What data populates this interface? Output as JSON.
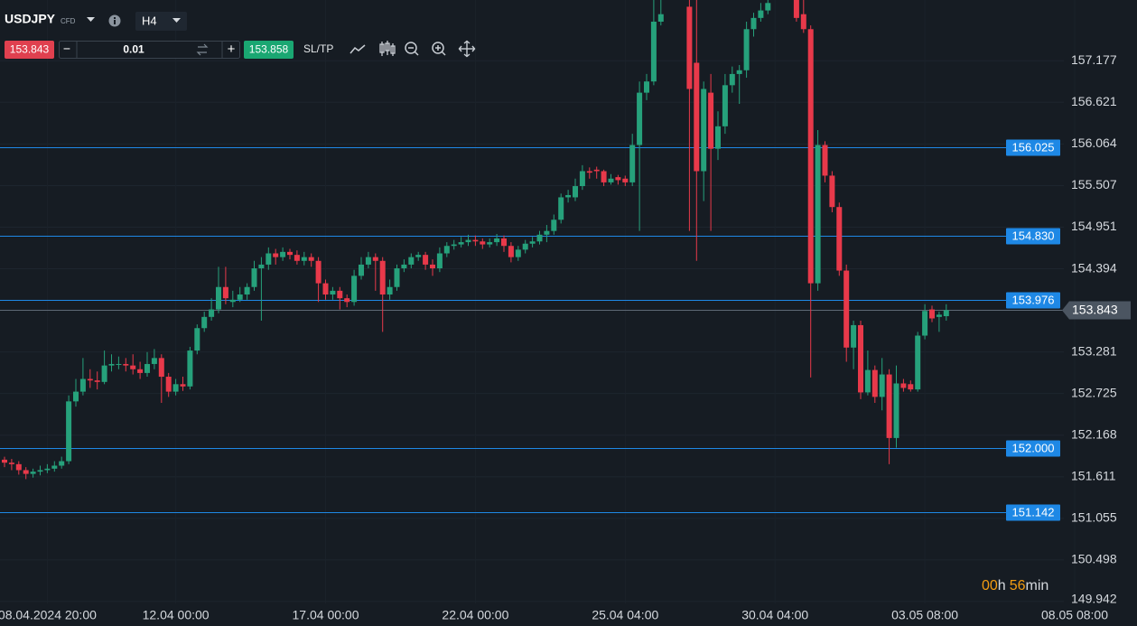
{
  "toolbar": {
    "symbol": "USDJPY",
    "symbol_type": "CFD",
    "timeframe": "H4",
    "sell_price": 153.843,
    "volume": 0.01,
    "buy_price": 153.858,
    "sltp": "SL/TP"
  },
  "timer": {
    "hours": "00",
    "hours_unit": "h",
    "minutes": "56",
    "minutes_unit": "min"
  },
  "chart_data": {
    "type": "candlestick",
    "categories": [
      null,
      null,
      null,
      null,
      null,
      null,
      "08.04.2024 20:00",
      null,
      null,
      null,
      null,
      null,
      null,
      null,
      null,
      null,
      null,
      null,
      null,
      null,
      null,
      null,
      null,
      null,
      "12.04 00:00",
      null,
      null,
      null,
      null,
      null,
      null,
      null,
      null,
      null,
      null,
      null,
      null,
      null,
      null,
      null,
      null,
      null,
      null,
      null,
      null,
      "17.04 00:00",
      null,
      null,
      null,
      null,
      null,
      null,
      null,
      null,
      null,
      null,
      null,
      null,
      null,
      null,
      null,
      null,
      null,
      null,
      null,
      null,
      "22.04 00:00",
      null,
      null,
      null,
      null,
      null,
      null,
      null,
      null,
      null,
      null,
      null,
      null,
      null,
      null,
      null,
      null,
      null,
      null,
      null,
      null,
      "25.04 04:00",
      null,
      null,
      null,
      null,
      null,
      null,
      null,
      null,
      null,
      null,
      null,
      null,
      null,
      null,
      null,
      null,
      null,
      null,
      null,
      null,
      "30.04 04:00",
      null,
      null,
      null,
      null,
      null,
      null,
      null,
      null,
      null,
      null,
      null,
      null,
      null,
      null,
      null,
      null,
      null,
      null,
      null,
      null,
      "03.05 08:00",
      null,
      null,
      null,
      null,
      null,
      null,
      null,
      null,
      null,
      null,
      null,
      null,
      null,
      null,
      null,
      null,
      null,
      null,
      null,
      null,
      "08.05 08:00"
    ],
    "open": [
      151.84,
      151.8,
      151.78,
      151.7,
      151.65,
      151.68,
      151.7,
      151.72,
      151.76,
      151.82,
      152.62,
      152.75,
      152.92,
      152.9,
      152.88,
      153.1,
      153.12,
      153.12,
      153.1,
      153.05,
      153.0,
      153.12,
      153.2,
      152.95,
      152.75,
      152.85,
      152.82,
      153.3,
      153.6,
      153.75,
      153.85,
      154.15,
      153.95,
      153.98,
      154.05,
      154.15,
      154.4,
      154.45,
      154.6,
      154.55,
      154.62,
      154.58,
      154.5,
      154.55,
      154.5,
      154.2,
      154.05,
      154.1,
      154.0,
      153.95,
      154.3,
      154.45,
      154.55,
      154.5,
      154.05,
      154.15,
      154.4,
      154.45,
      154.55,
      154.58,
      154.45,
      154.4,
      154.6,
      154.7,
      154.72,
      154.75,
      154.78,
      154.76,
      154.72,
      154.75,
      154.8,
      154.7,
      154.55,
      154.65,
      154.73,
      154.76,
      154.85,
      154.9,
      155.05,
      155.35,
      155.35,
      155.5,
      155.7,
      155.72,
      155.7,
      155.55,
      155.62,
      155.6,
      155.55,
      156.05,
      156.75,
      156.9,
      157.7,
      null,
      null,
      null,
      157.9,
      157.15,
      155.7,
      156.75,
      156.0,
      156.3,
      156.85,
      157.0,
      157.05,
      157.6,
      157.75,
      157.85,
      null,
      null,
      null,
      158.0,
      157.8,
      157.6,
      154.2,
      156.05,
      155.64,
      155.22,
      154.37,
      153.34,
      153.64,
      152.74,
      153.04,
      152.68,
      152.98,
      152.13,
      152.86,
      152.85,
      152.78,
      153.5,
      153.85,
      153.75,
      153.76,
      null,
      null,
      null,
      null,
      null,
      null,
      null,
      null,
      null,
      null,
      null,
      null,
      null,
      null,
      null,
      null,
      null,
      null
    ],
    "high": [
      151.88,
      151.85,
      151.82,
      151.74,
      151.72,
      151.76,
      151.78,
      151.82,
      151.88,
      152.7,
      152.92,
      153.2,
      153.05,
      153.02,
      153.3,
      153.25,
      153.22,
      153.2,
      153.25,
      153.15,
      153.28,
      153.32,
      153.25,
      153.0,
      152.92,
      152.95,
      153.35,
      153.65,
      153.82,
      154.0,
      154.42,
      154.42,
      154.1,
      154.15,
      154.2,
      154.5,
      154.55,
      154.68,
      154.66,
      154.68,
      154.66,
      154.64,
      154.62,
      154.6,
      154.55,
      154.25,
      154.15,
      154.15,
      154.05,
      154.38,
      154.55,
      154.62,
      154.6,
      154.55,
      154.25,
      154.45,
      154.52,
      154.6,
      154.62,
      154.62,
      154.52,
      154.68,
      154.75,
      154.78,
      154.82,
      154.85,
      154.84,
      154.8,
      154.8,
      154.86,
      154.84,
      154.75,
      154.7,
      154.78,
      154.82,
      154.9,
      154.98,
      155.12,
      155.4,
      155.45,
      155.6,
      155.78,
      155.75,
      155.76,
      155.72,
      155.66,
      155.65,
      155.64,
      156.2,
      156.9,
      157.0,
      158.05,
      158.05,
      null,
      null,
      null,
      158.1,
      158.1,
      156.9,
      157.0,
      156.5,
      157.0,
      157.1,
      157.12,
      157.7,
      157.82,
      157.95,
      158.05,
      null,
      null,
      null,
      158.1,
      158.1,
      157.65,
      156.25,
      156.1,
      155.7,
      155.28,
      154.45,
      153.7,
      153.7,
      153.3,
      153.1,
      153.2,
      153.05,
      153.1,
      152.92,
      152.9,
      153.55,
      153.92,
      153.9,
      153.82,
      153.92,
      null,
      null,
      null,
      null,
      null,
      null,
      null,
      null,
      null,
      null,
      null,
      null,
      null,
      null,
      null,
      null,
      null,
      null
    ],
    "low": [
      151.74,
      151.7,
      151.64,
      151.58,
      151.6,
      151.63,
      151.66,
      151.68,
      151.72,
      151.78,
      152.55,
      152.7,
      152.8,
      152.78,
      152.85,
      153.02,
      153.05,
      153.02,
      152.98,
      152.92,
      152.95,
      153.05,
      152.6,
      152.68,
      152.7,
      152.76,
      152.78,
      153.25,
      153.55,
      153.7,
      153.8,
      153.92,
      153.88,
      153.95,
      153.98,
      154.1,
      153.7,
      154.38,
      154.45,
      154.5,
      154.52,
      154.45,
      154.44,
      154.42,
      153.95,
      153.98,
      153.98,
      153.85,
      153.88,
      153.9,
      154.25,
      154.4,
      154.1,
      153.55,
      153.98,
      154.1,
      154.35,
      154.4,
      154.5,
      154.38,
      154.3,
      154.35,
      154.55,
      154.65,
      154.68,
      154.7,
      154.7,
      154.66,
      154.68,
      154.7,
      154.62,
      154.48,
      154.5,
      154.6,
      154.68,
      154.72,
      154.75,
      154.85,
      155.0,
      155.28,
      155.3,
      155.45,
      155.6,
      155.6,
      155.5,
      155.52,
      155.52,
      155.5,
      155.5,
      154.9,
      156.65,
      156.85,
      157.65,
      null,
      null,
      null,
      154.9,
      154.5,
      155.3,
      154.9,
      155.85,
      156.2,
      156.75,
      156.6,
      156.95,
      157.5,
      157.7,
      157.8,
      null,
      null,
      null,
      157.7,
      157.55,
      152.94,
      154.1,
      155.55,
      155.15,
      154.3,
      153.15,
      153.05,
      152.65,
      152.7,
      152.6,
      152.5,
      151.78,
      152.0,
      152.75,
      152.75,
      152.75,
      153.45,
      153.68,
      153.55,
      153.7,
      null,
      null,
      null,
      null,
      null,
      null,
      null,
      null,
      null,
      null,
      null,
      null,
      null,
      null,
      null,
      null,
      null,
      null
    ],
    "close": [
      151.8,
      151.78,
      151.7,
      151.65,
      151.68,
      151.7,
      151.72,
      151.76,
      151.82,
      152.62,
      152.75,
      152.92,
      152.9,
      152.88,
      153.1,
      153.12,
      153.12,
      153.1,
      153.05,
      153.0,
      153.12,
      153.2,
      152.95,
      152.75,
      152.85,
      152.82,
      153.3,
      153.6,
      153.75,
      153.85,
      154.15,
      154.0,
      153.98,
      154.05,
      154.15,
      154.4,
      154.45,
      154.6,
      154.55,
      154.62,
      154.58,
      154.5,
      154.55,
      154.5,
      154.2,
      154.05,
      154.1,
      154.0,
      153.95,
      154.3,
      154.45,
      154.55,
      154.5,
      154.05,
      154.15,
      154.4,
      154.45,
      154.55,
      154.58,
      154.45,
      154.4,
      154.6,
      154.7,
      154.72,
      154.75,
      154.78,
      154.76,
      154.72,
      154.75,
      154.8,
      154.7,
      154.55,
      154.65,
      154.73,
      154.76,
      154.85,
      154.9,
      155.05,
      155.35,
      155.38,
      155.5,
      155.7,
      155.68,
      155.7,
      155.55,
      155.6,
      155.58,
      155.55,
      156.05,
      156.75,
      156.9,
      157.7,
      157.8,
      null,
      null,
      null,
      156.8,
      155.7,
      156.8,
      156.0,
      156.3,
      156.85,
      157.0,
      157.05,
      157.6,
      157.75,
      157.85,
      157.95,
      null,
      null,
      null,
      157.75,
      157.6,
      154.2,
      156.05,
      155.64,
      155.22,
      154.37,
      153.34,
      153.64,
      152.74,
      153.04,
      152.68,
      152.98,
      152.13,
      152.86,
      152.8,
      152.78,
      153.5,
      153.83,
      153.73,
      153.78,
      153.84,
      null,
      null,
      null,
      null,
      null,
      null,
      null,
      null,
      null,
      null,
      null,
      null,
      null,
      null,
      null,
      null,
      null,
      null
    ],
    "up_color": "#26a17b",
    "down_color": "#e8394a",
    "ylim": [
      149.917,
      157.99
    ],
    "yticks": [
      149.942,
      150.498,
      151.055,
      151.611,
      152.168,
      152.725,
      153.281,
      154.394,
      154.951,
      155.507,
      156.064,
      156.621,
      157.177
    ],
    "grid": true,
    "levels": [
      {
        "value": 156.025,
        "label": "156.025"
      },
      {
        "value": 154.83,
        "label": "154.830"
      },
      {
        "value": 153.976,
        "label": "153.976"
      },
      {
        "value": 152.0,
        "label": "152.000"
      },
      {
        "value": 151.142,
        "label": "151.142"
      }
    ],
    "level_color": "#1e88e5",
    "last_price": 153.843
  }
}
